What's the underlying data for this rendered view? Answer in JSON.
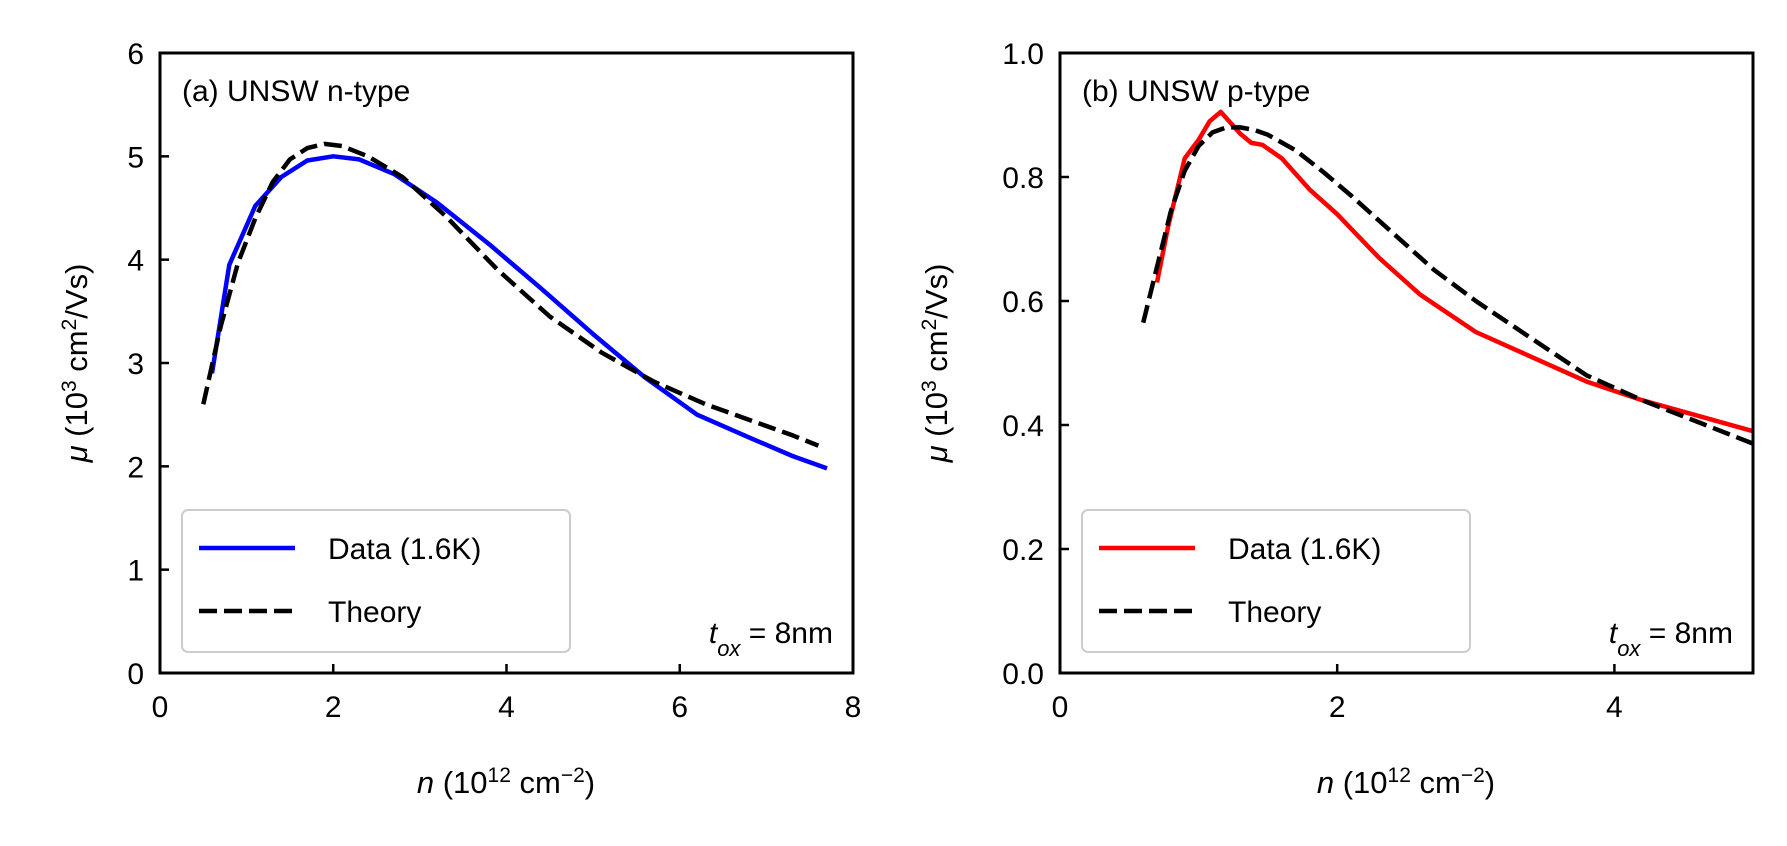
{
  "chart_data": [
    {
      "type": "line",
      "title": "(a) UNSW n-type",
      "xlabel": {
        "var": "n",
        "pre": " (10",
        "sup1": "12",
        "mid": " cm",
        "sup2": "−2",
        "post": ")"
      },
      "ylabel": {
        "var": "μ",
        "pre": " (10",
        "sup1": "3",
        "mid": " cm",
        "sup2": "2",
        "post": "/Vs)"
      },
      "xlim": [
        0,
        8
      ],
      "ylim": [
        0,
        6
      ],
      "xticks": [
        0,
        2,
        4,
        6,
        8
      ],
      "xtick_labels": [
        "0",
        "2",
        "4",
        "6",
        "8"
      ],
      "yticks": [
        0,
        1,
        2,
        3,
        4,
        5,
        6
      ],
      "ytick_labels": [
        "0",
        "1",
        "2",
        "3",
        "4",
        "5",
        "6"
      ],
      "legend_position": "lower-left",
      "annotation": {
        "var": "t",
        "sub": "ox",
        "rest": " = 8nm"
      },
      "series": [
        {
          "name": "Data (1.6K)",
          "color": "#0000ff",
          "style": "solid",
          "x": [
            0.6,
            0.8,
            1.1,
            1.4,
            1.7,
            2.0,
            2.3,
            2.7,
            3.2,
            3.8,
            4.4,
            5.0,
            5.6,
            6.2,
            6.8,
            7.3,
            7.7
          ],
          "y": [
            2.9,
            3.95,
            4.52,
            4.8,
            4.96,
            5.0,
            4.97,
            4.83,
            4.55,
            4.15,
            3.72,
            3.28,
            2.86,
            2.5,
            2.28,
            2.1,
            1.98
          ]
        },
        {
          "name": "Theory",
          "color": "#000000",
          "style": "dashed",
          "x": [
            0.5,
            0.7,
            0.9,
            1.1,
            1.3,
            1.5,
            1.7,
            1.9,
            2.1,
            2.4,
            2.8,
            3.3,
            3.9,
            4.5,
            5.1,
            5.7,
            6.3,
            6.9,
            7.3,
            7.6
          ],
          "y": [
            2.6,
            3.35,
            3.97,
            4.4,
            4.75,
            4.97,
            5.08,
            5.12,
            5.1,
            5.0,
            4.8,
            4.42,
            3.9,
            3.45,
            3.1,
            2.82,
            2.6,
            2.42,
            2.3,
            2.2
          ]
        }
      ]
    },
    {
      "type": "line",
      "title": "(b) UNSW p-type",
      "xlabel": {
        "var": "n",
        "pre": " (10",
        "sup1": "12",
        "mid": " cm",
        "sup2": "−2",
        "post": ")"
      },
      "ylabel": {
        "var": "μ",
        "pre": " (10",
        "sup1": "3",
        "mid": " cm",
        "sup2": "2",
        "post": "/Vs)"
      },
      "xlim": [
        0,
        5
      ],
      "ylim": [
        0,
        1
      ],
      "xticks": [
        0,
        2,
        4
      ],
      "xtick_labels": [
        "0",
        "2",
        "4"
      ],
      "yticks": [
        0,
        0.2,
        0.4,
        0.6,
        0.8,
        1.0
      ],
      "ytick_labels": [
        "0.0",
        "0.2",
        "0.4",
        "0.6",
        "0.8",
        "1.0"
      ],
      "legend_position": "lower-left",
      "annotation": {
        "var": "t",
        "sub": "ox",
        "rest": " = 8nm"
      },
      "series": [
        {
          "name": "Data (1.6K)",
          "color": "#ff0000",
          "style": "solid",
          "x": [
            0.7,
            0.78,
            0.9,
            1.0,
            1.08,
            1.16,
            1.22,
            1.3,
            1.38,
            1.46,
            1.6,
            1.8,
            2.0,
            2.3,
            2.6,
            3.0,
            3.4,
            3.8,
            4.2,
            4.6,
            5.0
          ],
          "y": [
            0.63,
            0.72,
            0.83,
            0.86,
            0.89,
            0.905,
            0.89,
            0.87,
            0.855,
            0.852,
            0.83,
            0.78,
            0.74,
            0.67,
            0.61,
            0.55,
            0.51,
            0.47,
            0.44,
            0.415,
            0.39
          ]
        },
        {
          "name": "Theory",
          "color": "#000000",
          "style": "dashed",
          "x": [
            0.6,
            0.7,
            0.8,
            0.9,
            1.0,
            1.1,
            1.2,
            1.3,
            1.4,
            1.5,
            1.7,
            1.9,
            2.1,
            2.4,
            2.7,
            3.0,
            3.4,
            3.8,
            4.2,
            4.6,
            5.0
          ],
          "y": [
            0.565,
            0.655,
            0.745,
            0.81,
            0.85,
            0.872,
            0.88,
            0.88,
            0.876,
            0.868,
            0.843,
            0.808,
            0.77,
            0.71,
            0.65,
            0.6,
            0.54,
            0.48,
            0.44,
            0.405,
            0.37
          ]
        }
      ]
    }
  ]
}
